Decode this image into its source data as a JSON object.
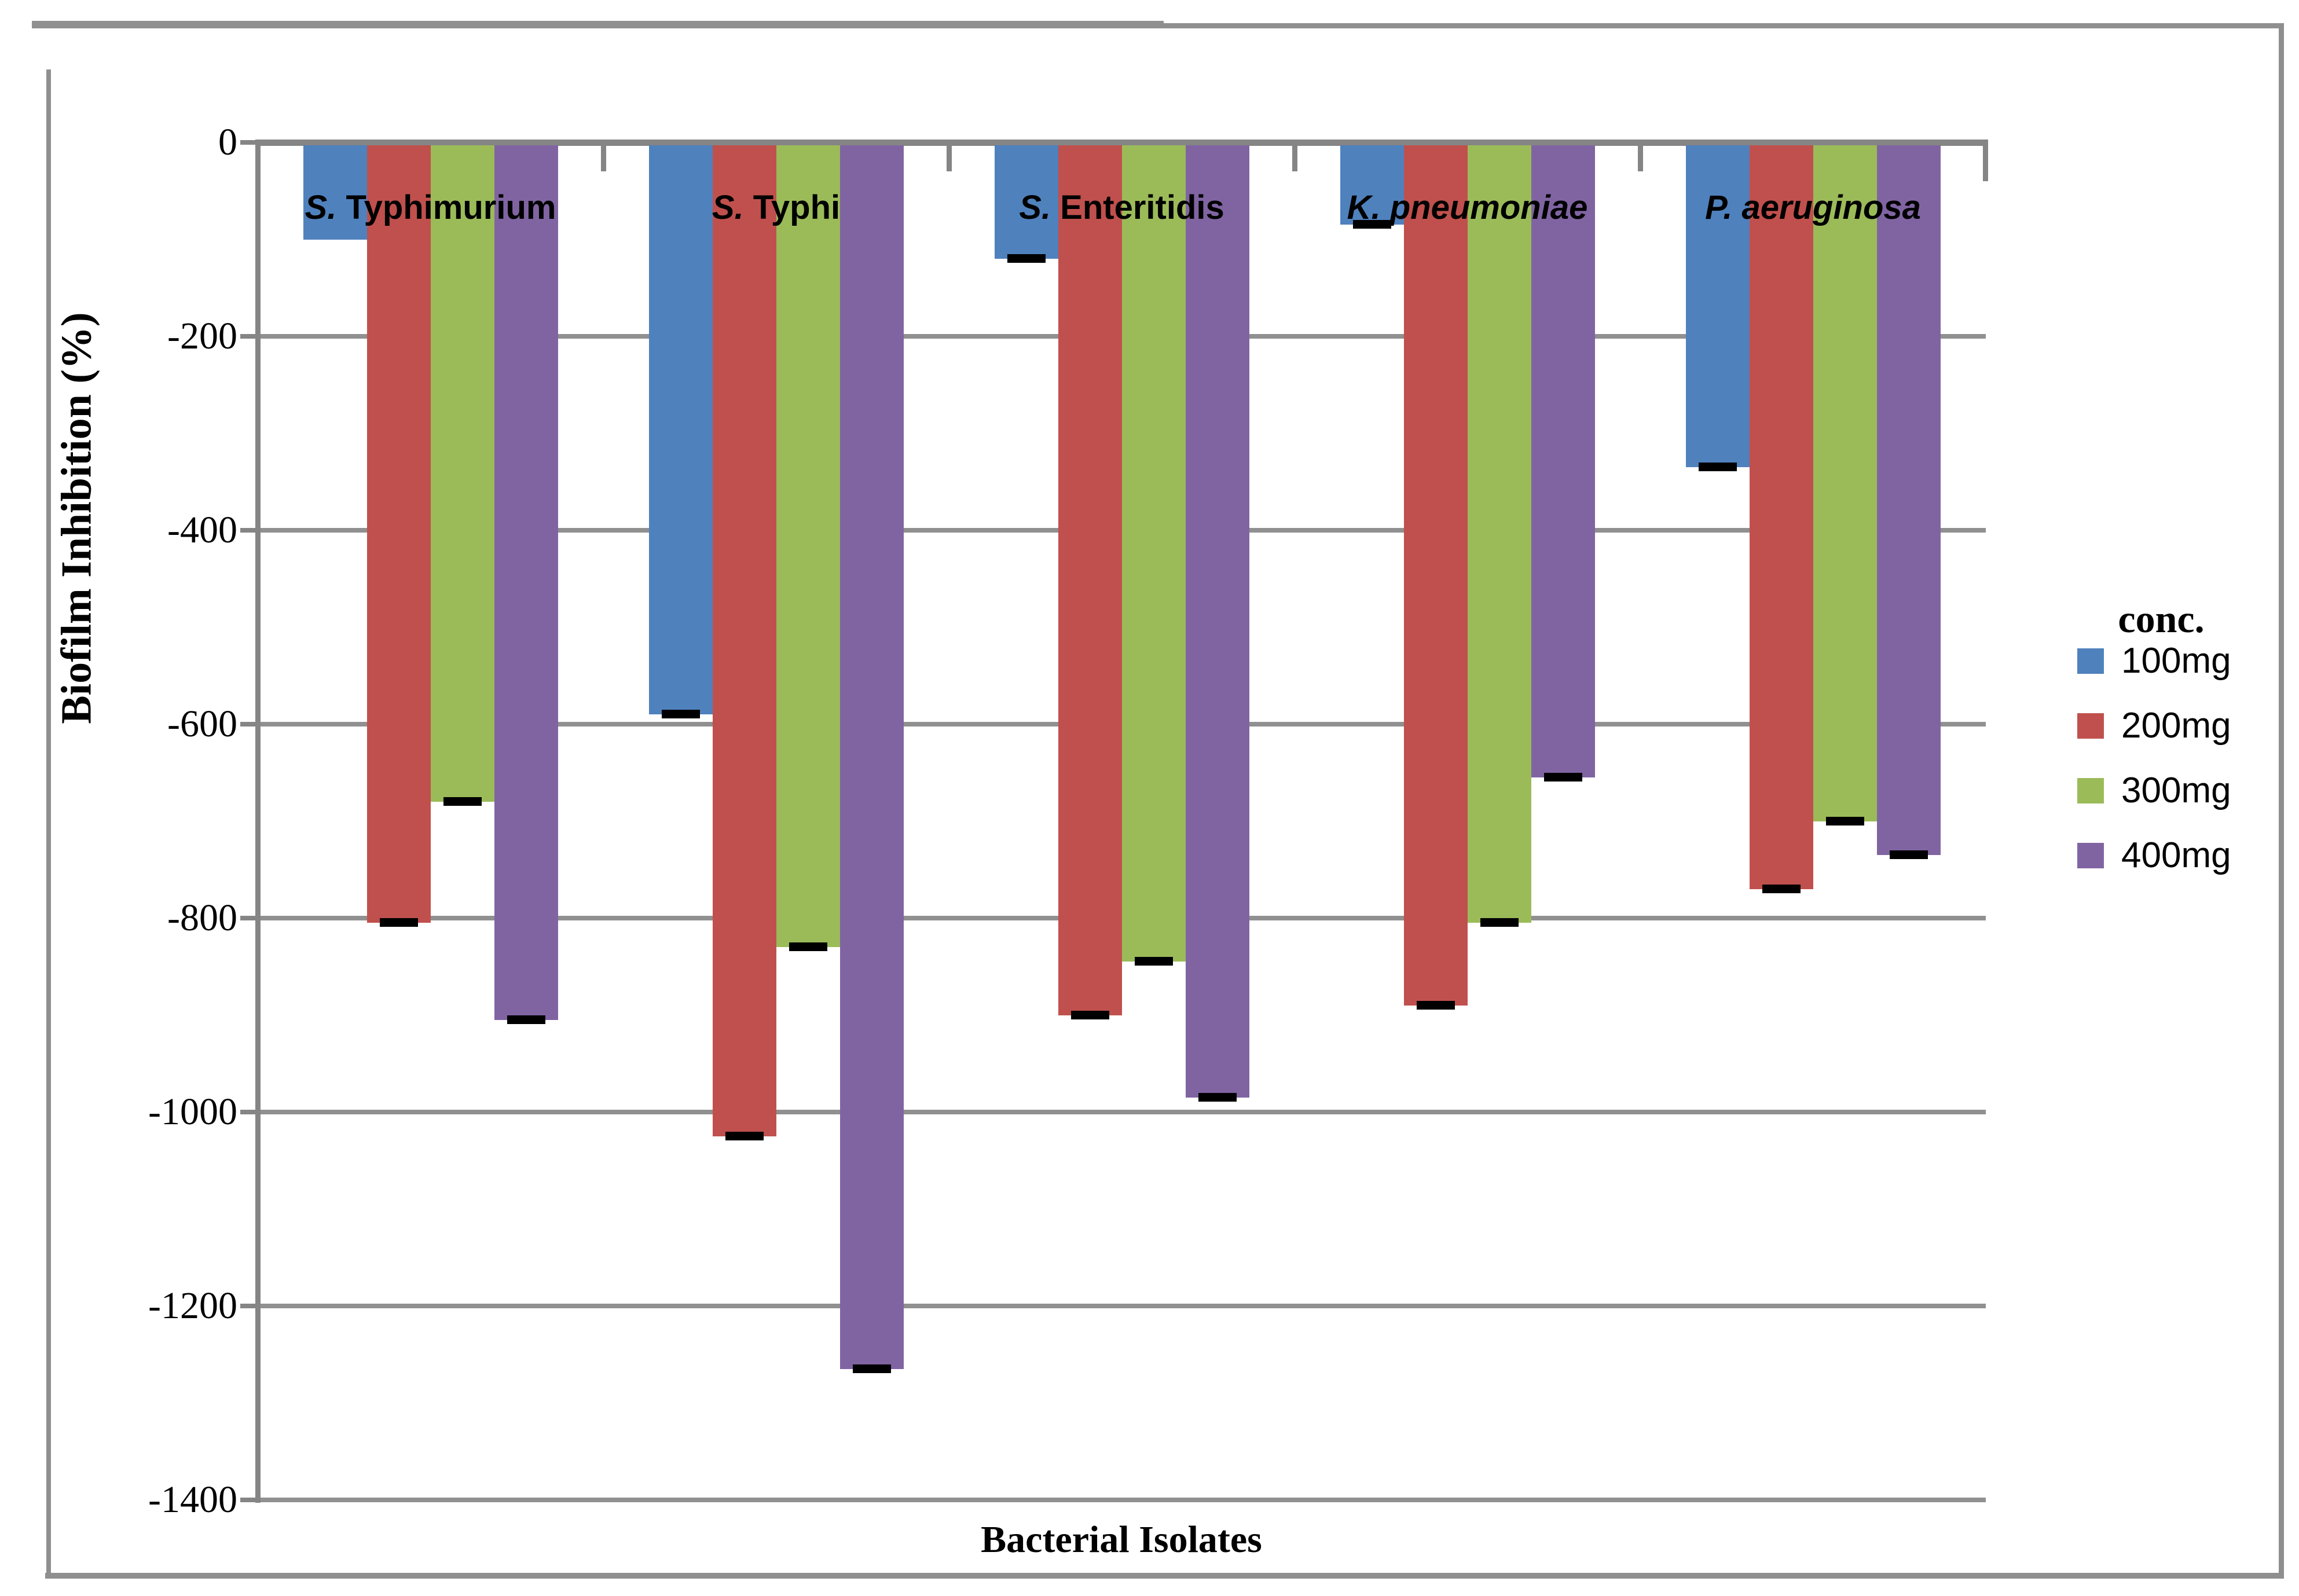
{
  "chart_data": {
    "type": "bar",
    "title": "",
    "xlabel": "Bacterial Isolates",
    "ylabel": "Biofilm Inhibition (%)",
    "ylim": [
      0,
      -1400
    ],
    "grid": true,
    "legend_position": "right",
    "legend_title": "conc.",
    "y_tick_labels": [
      "0",
      "-200",
      "-400",
      "-600",
      "-800",
      "-1000",
      "-1200",
      "-1400"
    ],
    "y_tick_values": [
      0,
      -200,
      -400,
      -600,
      -800,
      -1000,
      -1200,
      -1400
    ],
    "categories": [
      {
        "genus": "S.",
        "species": "Typhimurium",
        "species_italic": false
      },
      {
        "genus": "S.",
        "species": "Typhi",
        "species_italic": false
      },
      {
        "genus": "S.",
        "species": "Enteritidis",
        "species_italic": false
      },
      {
        "genus": "K.",
        "species": "pneumoniae",
        "species_italic": true
      },
      {
        "genus": "P.",
        "species": "aeruginosa",
        "species_italic": true
      }
    ],
    "series": [
      {
        "name": "100mg",
        "color": "#4F81BD",
        "values": [
          -100,
          -590,
          -120,
          -85,
          -335
        ],
        "error_caps": [
          false,
          true,
          true,
          true,
          true
        ]
      },
      {
        "name": "200mg",
        "color": "#C0504D",
        "values": [
          -805,
          -1025,
          -900,
          -890,
          -770
        ],
        "error_caps": [
          true,
          true,
          true,
          true,
          true
        ]
      },
      {
        "name": "300mg",
        "color": "#9BBB59",
        "values": [
          -680,
          -830,
          -845,
          -805,
          -700
        ],
        "error_caps": [
          true,
          true,
          true,
          true,
          true
        ]
      },
      {
        "name": "400mg",
        "color": "#8064A2",
        "values": [
          -905,
          -1265,
          -985,
          -655,
          -735
        ],
        "error_caps": [
          true,
          true,
          true,
          true,
          true
        ]
      }
    ],
    "colors": {
      "gridline": "#909090",
      "axis": "#858585",
      "frame_border": "#8f8f8f",
      "error_cap": "#000000",
      "background": "#ffffff"
    }
  }
}
